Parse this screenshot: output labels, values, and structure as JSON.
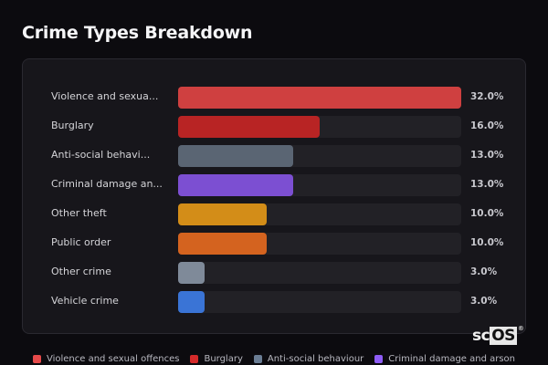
{
  "header": {
    "title": "Crime Types Breakdown"
  },
  "rows": [
    {
      "label": "Violence and sexua...",
      "value": "32.0%",
      "pct": 32.0,
      "color": "#cf4040"
    },
    {
      "label": "Burglary",
      "value": "16.0%",
      "pct": 16.0,
      "color": "#b82424"
    },
    {
      "label": "Anti-social behavi...",
      "value": "13.0%",
      "pct": 13.0,
      "color": "#5a6573"
    },
    {
      "label": "Criminal damage an...",
      "value": "13.0%",
      "pct": 13.0,
      "color": "#7c4fd2"
    },
    {
      "label": "Other theft",
      "value": "10.0%",
      "pct": 10.0,
      "color": "#d38d18"
    },
    {
      "label": "Public order",
      "value": "10.0%",
      "pct": 10.0,
      "color": "#d4631f"
    },
    {
      "label": "Other crime",
      "value": "3.0%",
      "pct": 3.0,
      "color": "#7f8a99"
    },
    {
      "label": "Vehicle crime",
      "value": "3.0%",
      "pct": 3.0,
      "color": "#3a74d6"
    }
  ],
  "legend": [
    {
      "label": "Violence and sexual offences",
      "color": "#e64a4a"
    },
    {
      "label": "Burglary",
      "color": "#d42a2a"
    },
    {
      "label": "Anti-social behaviour",
      "color": "#6a7d94"
    },
    {
      "label": "Criminal damage and arson",
      "color": "#8e5cf5"
    }
  ],
  "watermark": {
    "prefix": "sc",
    "highlight": "OS",
    "mark": "®"
  },
  "chart_data": {
    "type": "bar",
    "orientation": "horizontal",
    "title": "Crime Types Breakdown",
    "categories": [
      "Violence and sexual offences",
      "Burglary",
      "Anti-social behaviour",
      "Criminal damage and arson",
      "Other theft",
      "Public order",
      "Other crime",
      "Vehicle crime"
    ],
    "values": [
      32.0,
      16.0,
      13.0,
      13.0,
      10.0,
      10.0,
      3.0,
      3.0
    ],
    "unit": "%",
    "xlim": [
      0,
      32
    ],
    "grid": false,
    "legend_position": "bottom",
    "legend_entries": [
      "Violence and sexual offences",
      "Burglary",
      "Anti-social behaviour",
      "Criminal damage and arson"
    ]
  }
}
